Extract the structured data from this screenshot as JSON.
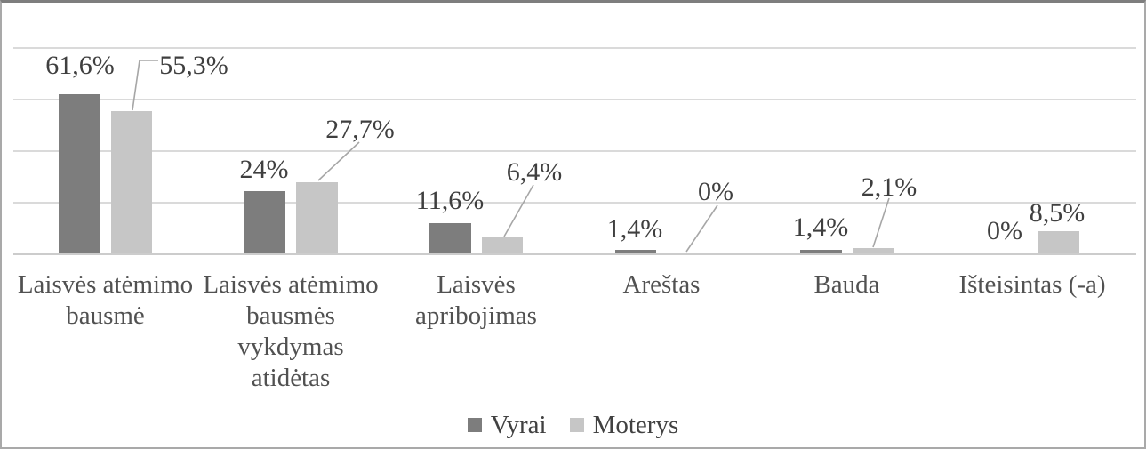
{
  "chart_data": {
    "type": "bar",
    "title": "",
    "xlabel": "",
    "ylabel": "",
    "categories": [
      "Laisvės atėmimo\nbausmė",
      "Laisvės atėmimo\nbausmės\nvykdymas\natidėtas",
      "Laisvės\napribojimas",
      "Areštas",
      "Bauda",
      "Išteisintas (-a)"
    ],
    "series": [
      {
        "name": "Vyrai",
        "color": "#7d7d7d",
        "values": [
          61.6,
          24,
          11.6,
          1.4,
          1.4,
          0
        ],
        "data_labels": [
          "61,6%",
          "24%",
          "11,6%",
          "1,4%",
          "1,4%",
          "0%"
        ]
      },
      {
        "name": "Moterys",
        "color": "#c6c6c6",
        "values": [
          55.3,
          27.7,
          6.4,
          0,
          2.1,
          8.5
        ],
        "data_labels": [
          "55,3%",
          "27,7%",
          "6,4%",
          "0%",
          "2,1%",
          "8,5%"
        ]
      }
    ],
    "ylim": [
      0,
      80
    ],
    "gridline_step": 20,
    "grid": true,
    "y_axis_labels_visible": false,
    "legend_position": "bottom",
    "value_format": "percent-comma-decimal"
  },
  "colors": {
    "gridline": "#dadada",
    "axis_line": "#cccccc",
    "leader_line": "#a6a6a6",
    "data_label_text": "#3f3f3f",
    "category_text": "#515151",
    "legend_text": "#414141"
  }
}
